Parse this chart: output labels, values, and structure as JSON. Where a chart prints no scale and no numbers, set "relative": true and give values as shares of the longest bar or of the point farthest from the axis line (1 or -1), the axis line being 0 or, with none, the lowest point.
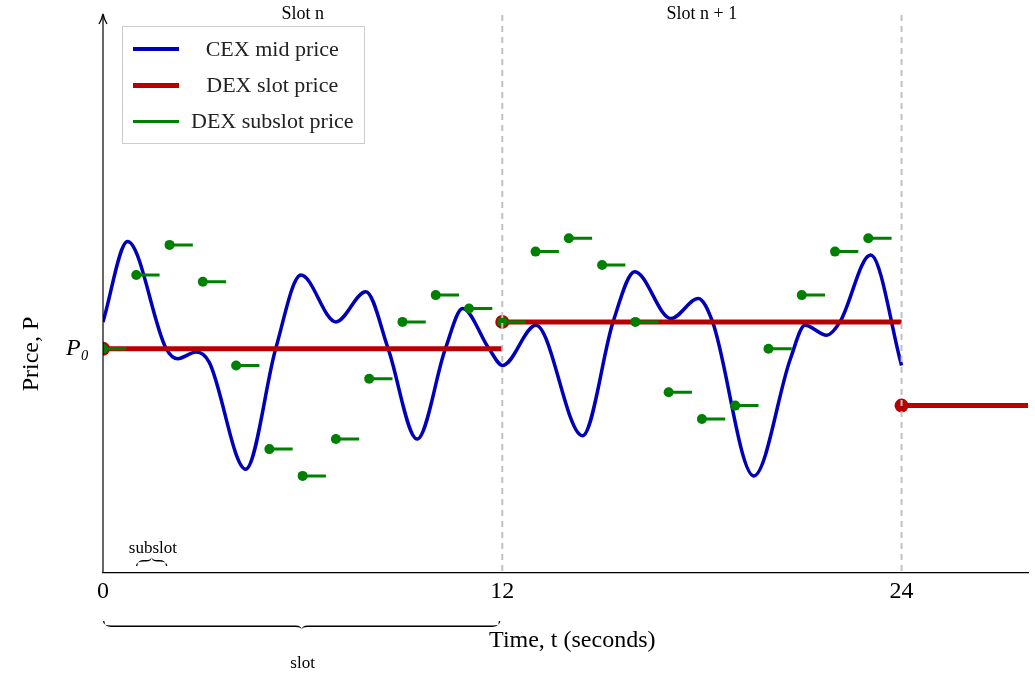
{
  "chart_data": {
    "type": "line",
    "relative": true,
    "xlabel": "Time, t (seconds)",
    "ylabel": "Price, P",
    "xlim": [
      0,
      27.8
    ],
    "xticks": [
      0,
      12,
      24
    ],
    "grid": false,
    "legend": "top left",
    "ref_lines": [
      {
        "axis": "x",
        "value": 12,
        "color": "#c0c0c0",
        "line_style": "dashed"
      },
      {
        "axis": "x",
        "value": 24,
        "color": "#c0c0c0",
        "line_style": "dashed"
      }
    ],
    "annotations": [
      "Slot n",
      "Slot n + 1",
      "subslot",
      "slot",
      {
        "text": "P₀",
        "x": 0,
        "y": 0.67
      }
    ],
    "series": [
      {
        "name": "CEX mid price",
        "color": "#0000b8",
        "marker": "none",
        "line_style": "solid",
        "x": [
          0,
          0.74,
          1.9,
          2.24,
          2.8,
          3.19,
          4.29,
          5.19,
          5.95,
          7.0,
          7.9,
          8.57,
          9.44,
          10.29,
          10.81,
          11.6,
          12.01,
          13.01,
          14.41,
          15.33,
          15.98,
          17.07,
          17.89,
          18.32,
          19.56,
          20.66,
          21.1,
          21.75,
          22.15,
          23.07,
          24
        ],
        "values": [
          0.75,
          0.99,
          0.67,
          0.64,
          0.66,
          0.63,
          0.31,
          0.67,
          0.89,
          0.75,
          0.84,
          0.67,
          0.4,
          0.67,
          0.79,
          0.67,
          0.62,
          0.74,
          0.41,
          0.75,
          0.9,
          0.76,
          0.82,
          0.75,
          0.29,
          0.64,
          0.74,
          0.71,
          0.75,
          0.95,
          0.62
        ]
      },
      {
        "name": "DEX slot price",
        "color": "#b80000",
        "marker": "circle",
        "line_style": "solid",
        "x": [
          0,
          12,
          null,
          12,
          24,
          null,
          24,
          27.8
        ],
        "values": [
          0.67,
          0.67,
          null,
          0.75,
          0.75,
          null,
          0.5,
          0.5
        ]
      },
      {
        "name": "DEX subslot price",
        "color": "#008000",
        "marker": "circle",
        "line_style": "solid",
        "x": [
          0,
          0.7,
          null,
          1,
          1.7,
          null,
          2,
          2.7,
          null,
          3,
          3.7,
          null,
          4,
          4.7,
          null,
          5,
          5.7,
          null,
          6,
          6.7,
          null,
          7,
          7.7,
          null,
          8,
          8.7,
          null,
          9,
          9.7,
          null,
          10,
          10.7,
          null,
          11,
          11.7,
          null,
          12,
          12.7,
          null,
          13,
          13.7,
          null,
          14,
          14.7,
          null,
          15,
          15.7,
          null,
          16,
          16.7,
          null,
          17,
          17.7,
          null,
          18,
          18.7,
          null,
          19,
          19.7,
          null,
          20,
          20.7,
          null,
          21,
          21.7,
          null,
          22,
          22.7,
          null,
          23,
          23.7
        ],
        "values": [
          0.67,
          0.67,
          null,
          0.89,
          0.89,
          null,
          0.98,
          0.98,
          null,
          0.87,
          0.87,
          null,
          0.62,
          0.62,
          null,
          0.37,
          0.37,
          null,
          0.29,
          0.29,
          null,
          0.4,
          0.4,
          null,
          0.58,
          0.58,
          null,
          0.75,
          0.75,
          null,
          0.83,
          0.83,
          null,
          0.79,
          0.79,
          null,
          0.75,
          0.75,
          null,
          0.96,
          0.96,
          null,
          1.0,
          1.0,
          null,
          0.92,
          0.92,
          null,
          0.75,
          0.75,
          null,
          0.54,
          0.54,
          null,
          0.46,
          0.46,
          null,
          0.5,
          0.5,
          null,
          0.67,
          0.67,
          null,
          0.83,
          0.83,
          null,
          0.96,
          0.96,
          null,
          1.0,
          1.0
        ]
      }
    ]
  }
}
